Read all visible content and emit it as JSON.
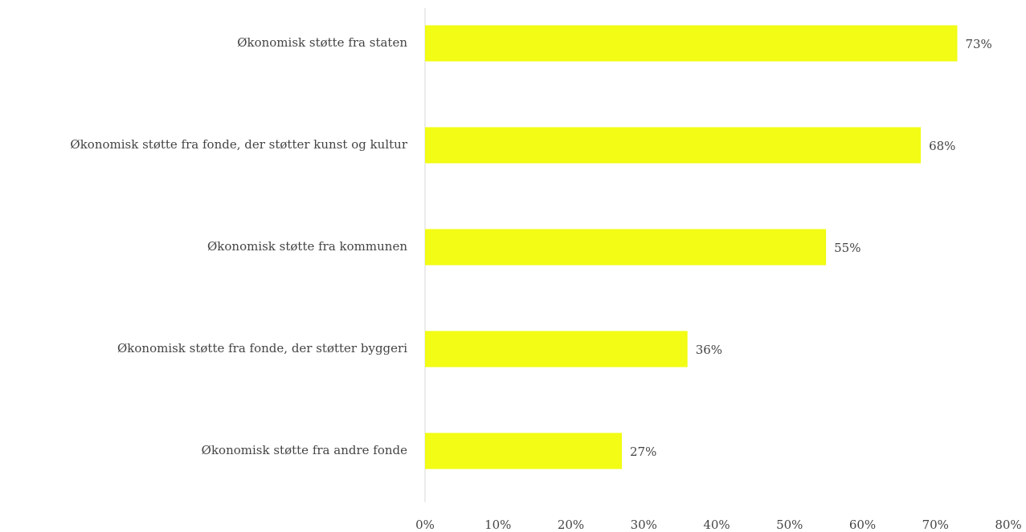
{
  "chart_data": {
    "type": "barh",
    "categories": [
      "Økonomisk støtte fra staten",
      "Økonomisk støtte fra fonde, der støtter kunst og kultur",
      "Økonomisk støtte fra kommunen",
      "Økonomisk støtte fra fonde, der støtter byggeri",
      "Økonomisk støtte fra andre fonde"
    ],
    "values": [
      73,
      68,
      55,
      36,
      27
    ],
    "value_labels": [
      "73%",
      "68%",
      "55%",
      "36%",
      "27%"
    ],
    "color": "#f2fc14",
    "xlim": [
      0,
      80
    ],
    "xticks": [
      {
        "value": 0,
        "label": "0%"
      },
      {
        "value": 10,
        "label": "10%"
      },
      {
        "value": 20,
        "label": "20%"
      },
      {
        "value": 30,
        "label": "30%"
      },
      {
        "value": 40,
        "label": "40%"
      },
      {
        "value": 50,
        "label": "50%"
      },
      {
        "value": 60,
        "label": "60%"
      },
      {
        "value": 70,
        "label": "70%"
      },
      {
        "value": 80,
        "label": "80%"
      }
    ],
    "grid": false
  }
}
